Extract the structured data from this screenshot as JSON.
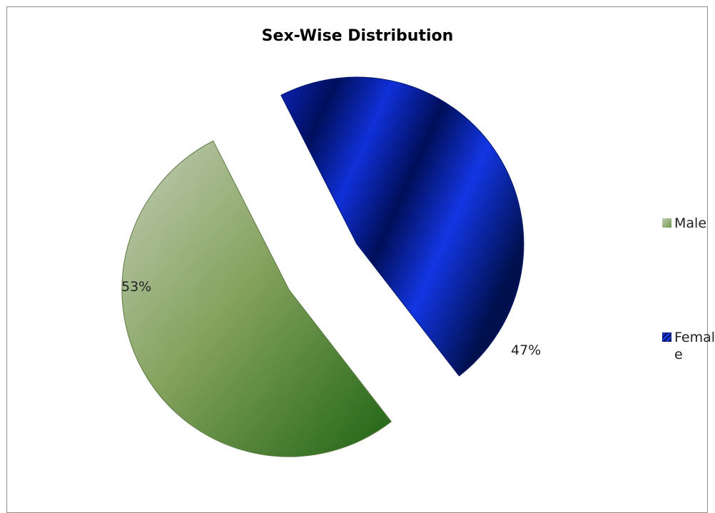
{
  "chart_data": {
    "type": "pie",
    "title": "Sex-Wise Distribution",
    "categories": [
      "Male",
      "Female"
    ],
    "values": [
      53,
      47
    ],
    "labels": [
      "53%",
      "47%"
    ],
    "colors": [
      "#7f9f5e",
      "#0a1fa8"
    ],
    "exploded": true,
    "legend": "right"
  },
  "legend": {
    "items": [
      {
        "label": "Male",
        "color": "#8fb070"
      },
      {
        "label": "Female",
        "color": "#1a3fe0"
      }
    ]
  }
}
